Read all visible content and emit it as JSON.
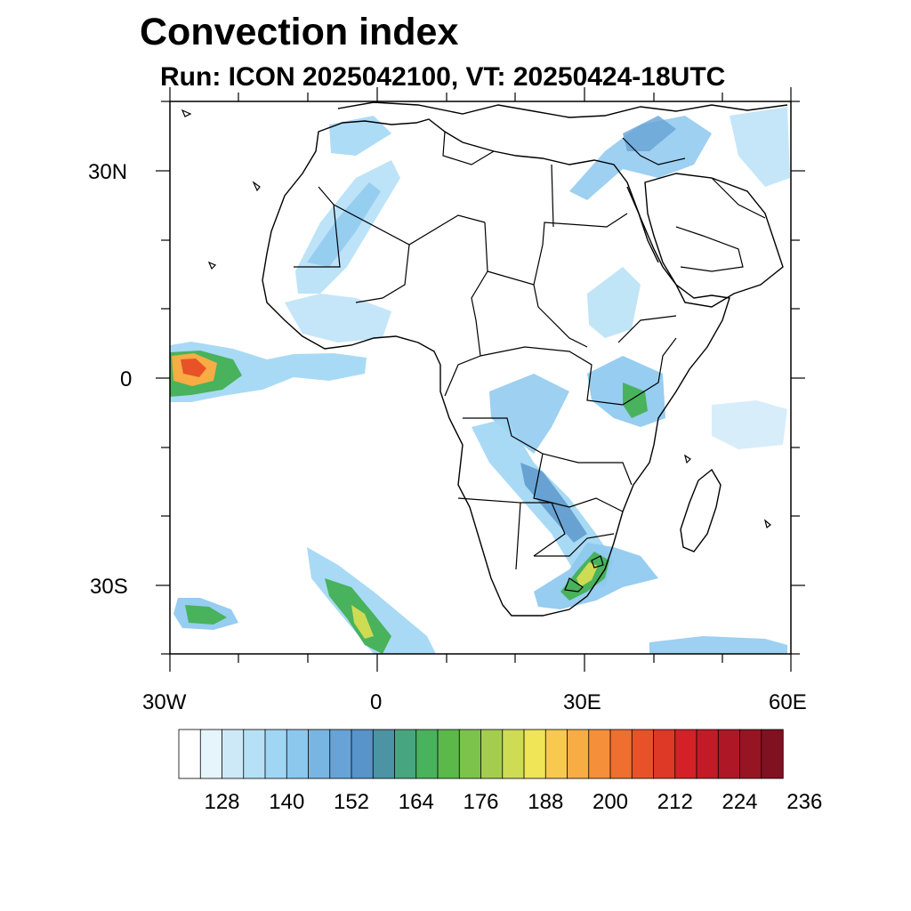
{
  "title": "Convection index",
  "subtitle": "Run: ICON 2025042100,  VT: 20250424-18UTC",
  "map": {
    "extent": {
      "lon_min": -30,
      "lon_max": 60,
      "lat_min": -40,
      "lat_max": 40
    },
    "lat_labels": [
      "30N",
      "0",
      "30S"
    ],
    "lon_labels": [
      "30W",
      "0",
      "30E",
      "60E"
    ]
  },
  "colorbar": {
    "colors": [
      "#ffffff",
      "#e6f4fc",
      "#cde9f8",
      "#b5e0f6",
      "#9fd6f4",
      "#8cc8ee",
      "#79b5e3",
      "#67a3d6",
      "#5893c9",
      "#4c93a3",
      "#47a67f",
      "#49b25c",
      "#5bb94a",
      "#7cc34c",
      "#a4cd4f",
      "#cddc53",
      "#f0e457",
      "#f8c94f",
      "#f7ac44",
      "#f58f3a",
      "#ef6f30",
      "#e85229",
      "#de3827",
      "#d32127",
      "#c21a27",
      "#ae1826",
      "#971523",
      "#811020"
    ],
    "labels": [
      "128",
      "140",
      "152",
      "164",
      "176",
      "188",
      "200",
      "212",
      "224",
      "236"
    ]
  },
  "field_legend_colors": {
    "low": "#9fd6f4",
    "mid": "#49b25c",
    "high": "#f7ac44",
    "max": "#e85229"
  }
}
